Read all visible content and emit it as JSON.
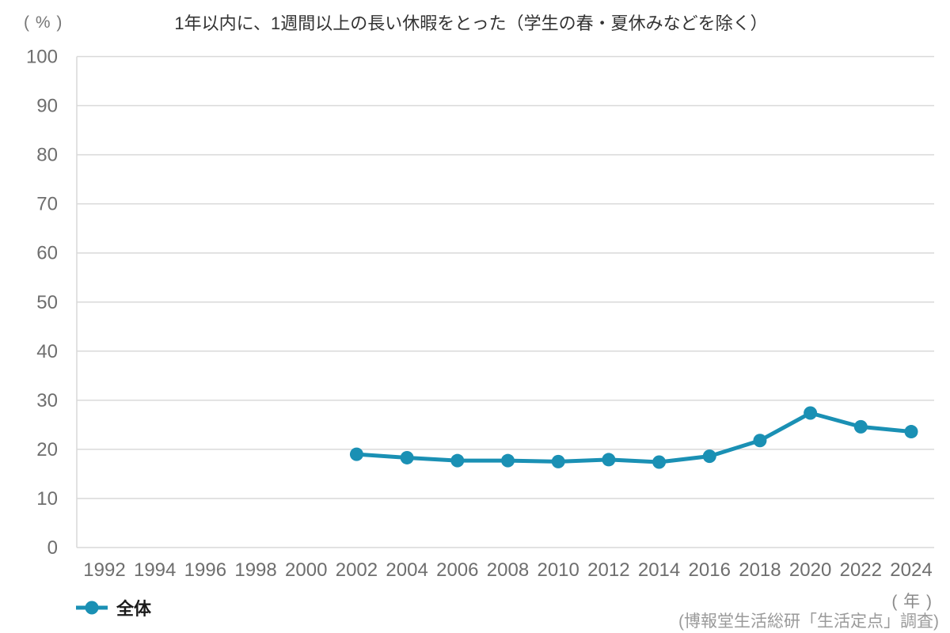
{
  "header": {
    "y_axis_unit_label": "( % )",
    "title": "1年以内に、1週間以上の長い休暇をとった（学生の春・夏休みなどを除く）"
  },
  "legend": {
    "label": "全体"
  },
  "footer": {
    "x_axis_unit_label": "( 年 )",
    "source": "(博報堂生活総研「生活定点」調査)"
  },
  "colors": {
    "series": "#1a90b4",
    "grid": "#d9d9d9",
    "tick_text": "#6e6e6e"
  },
  "chart_data": {
    "type": "line",
    "title": "1年以内に、1週間以上の長い休暇をとった（学生の春・夏休みなどを除く）",
    "y_unit": "%",
    "x_unit": "年",
    "ylim": [
      0,
      100
    ],
    "y_tick_step": 10,
    "x_ticks": [
      1992,
      1994,
      1996,
      1998,
      2000,
      2002,
      2004,
      2006,
      2008,
      2010,
      2012,
      2014,
      2016,
      2018,
      2020,
      2022,
      2024
    ],
    "grid": "horizontal",
    "legend_position": "bottom-left",
    "series": [
      {
        "name": "全体",
        "color": "#1a90b4",
        "points": [
          {
            "year": 2002,
            "value": 19.0
          },
          {
            "year": 2004,
            "value": 18.3
          },
          {
            "year": 2006,
            "value": 17.7
          },
          {
            "year": 2008,
            "value": 17.7
          },
          {
            "year": 2010,
            "value": 17.5
          },
          {
            "year": 2012,
            "value": 17.9
          },
          {
            "year": 2014,
            "value": 17.4
          },
          {
            "year": 2016,
            "value": 18.6
          },
          {
            "year": 2018,
            "value": 21.8
          },
          {
            "year": 2020,
            "value": 27.4
          },
          {
            "year": 2022,
            "value": 24.6
          },
          {
            "year": 2024,
            "value": 23.6
          }
        ]
      }
    ]
  }
}
